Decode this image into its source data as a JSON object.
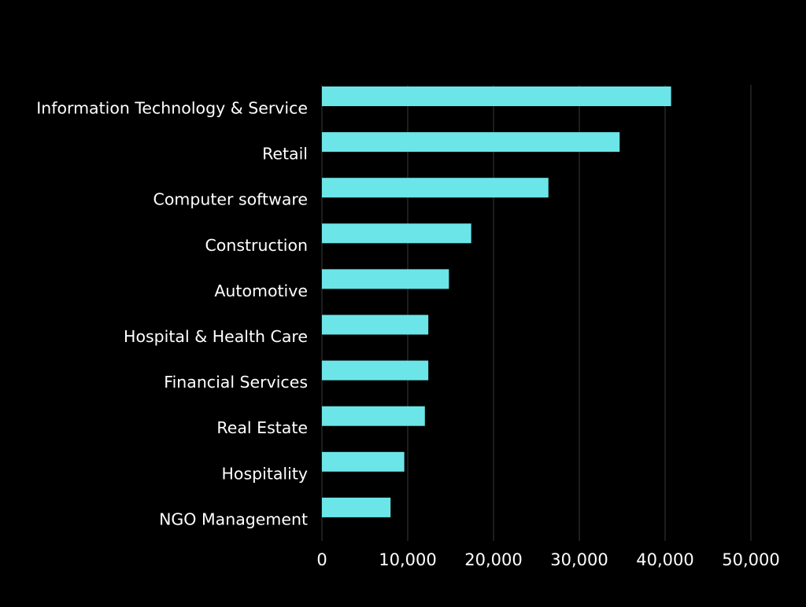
{
  "chart_data": {
    "type": "bar",
    "orientation": "horizontal",
    "title": "",
    "xlabel": "",
    "ylabel": "",
    "categories": [
      "Information Technology & Service",
      "Retail",
      "Computer software",
      "Construction",
      "Automotive",
      "Hospital & Health Care",
      "Financial Services",
      "Real Estate",
      "Hospitality",
      "NGO Management"
    ],
    "values": [
      40700,
      34700,
      26400,
      17400,
      14800,
      12400,
      12400,
      12000,
      9600,
      8000
    ],
    "xlim": [
      0,
      50000
    ],
    "xticks": [
      0,
      10000,
      20000,
      30000,
      40000,
      50000
    ],
    "xtick_labels": [
      "0",
      "10,000",
      "20,000",
      "30,000",
      "40,000",
      "50,000"
    ],
    "grid": true,
    "legend": "none"
  },
  "colors": {
    "background": "#000000",
    "bar": "#6ce5e8",
    "text": "#ffffff",
    "grid": "#3a3a3a"
  }
}
